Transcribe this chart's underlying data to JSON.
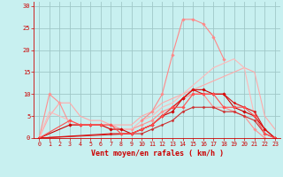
{
  "background_color": "#c8f0f0",
  "grid_color": "#a0c8c8",
  "xlabel": "Vent moyen/en rafales ( km/h )",
  "xlim": [
    -0.5,
    23.5
  ],
  "ylim": [
    0,
    31
  ],
  "yticks": [
    0,
    5,
    10,
    15,
    20,
    25,
    30
  ],
  "xticks": [
    0,
    1,
    2,
    3,
    4,
    5,
    6,
    7,
    8,
    9,
    10,
    11,
    12,
    13,
    14,
    15,
    16,
    17,
    18,
    19,
    20,
    21,
    22,
    23
  ],
  "lines": [
    {
      "x": [
        0,
        1,
        2,
        3,
        4,
        5,
        6,
        7,
        8,
        9,
        10,
        11,
        12,
        13,
        14,
        15,
        16,
        17,
        18,
        19,
        20,
        21,
        22
      ],
      "y": [
        0,
        10,
        8,
        3,
        3,
        3,
        3,
        3,
        2,
        2,
        3,
        4,
        6,
        7,
        9,
        10,
        10,
        7,
        7,
        6,
        5,
        2,
        0
      ],
      "color": "#ff9090",
      "lw": 0.8,
      "marker": "D",
      "ms": 1.8
    },
    {
      "x": [
        0,
        1,
        2,
        3,
        4,
        5,
        6,
        7,
        8,
        9,
        10,
        11,
        12,
        13,
        14,
        15,
        16,
        17,
        18,
        19,
        20,
        21,
        22,
        23
      ],
      "y": [
        0,
        5,
        8,
        8,
        5,
        4,
        4,
        3,
        3,
        3,
        5,
        6,
        8,
        9,
        10,
        11,
        12,
        13,
        14,
        15,
        16,
        15,
        5,
        2
      ],
      "color": "#ffaaaa",
      "lw": 0.8,
      "marker": null,
      "ms": 0
    },
    {
      "x": [
        0,
        1,
        2,
        3,
        4,
        5,
        6,
        7,
        8,
        9,
        10,
        11,
        12,
        13,
        14,
        15,
        16,
        17,
        18,
        19,
        20,
        21,
        22
      ],
      "y": [
        0,
        6,
        5,
        4,
        3,
        3,
        3,
        2,
        2,
        2,
        4,
        5,
        7,
        8,
        10,
        12,
        14,
        16,
        17,
        18,
        16,
        5,
        2
      ],
      "color": "#ffb8b8",
      "lw": 0.8,
      "marker": null,
      "ms": 0
    },
    {
      "x": [
        0,
        3,
        4,
        5,
        6,
        7,
        8,
        9,
        10,
        11,
        12,
        13,
        14,
        15,
        16,
        17,
        18,
        19,
        20,
        21,
        22,
        23
      ],
      "y": [
        0,
        3,
        3,
        3,
        3,
        2,
        2,
        1,
        2,
        3,
        5,
        6,
        9,
        11,
        11,
        10,
        10,
        7,
        6,
        5,
        2,
        0
      ],
      "color": "#cc0000",
      "lw": 0.8,
      "marker": "D",
      "ms": 1.8
    },
    {
      "x": [
        0,
        9,
        10,
        11,
        12,
        13,
        14,
        15,
        16,
        17,
        18,
        19,
        20,
        21,
        22,
        23
      ],
      "y": [
        0,
        1,
        1,
        2,
        3,
        4,
        6,
        7,
        7,
        7,
        6,
        6,
        5,
        4,
        1,
        0
      ],
      "color": "#cc3030",
      "lw": 0.8,
      "marker": "D",
      "ms": 1.5
    },
    {
      "x": [
        0,
        7,
        8,
        9,
        10,
        11,
        12,
        13,
        14,
        15,
        16,
        17,
        18,
        19,
        20,
        21,
        22,
        23
      ],
      "y": [
        0,
        1,
        1,
        1,
        2,
        3,
        5,
        7,
        9,
        11,
        10,
        10,
        10,
        8,
        7,
        6,
        2,
        0
      ],
      "color": "#dd1010",
      "lw": 0.8,
      "marker": "D",
      "ms": 1.5
    },
    {
      "x": [
        0,
        3,
        4,
        5,
        6,
        7,
        8,
        9,
        10,
        11,
        12,
        13,
        14,
        15,
        16,
        17,
        18,
        19,
        20,
        21,
        22,
        23
      ],
      "y": [
        0,
        4,
        3,
        3,
        3,
        3,
        1,
        1,
        2,
        3,
        5,
        7,
        7,
        10,
        10,
        10,
        7,
        7,
        7,
        5,
        1,
        0
      ],
      "color": "#ff5050",
      "lw": 0.8,
      "marker": "D",
      "ms": 1.8
    },
    {
      "x": [
        10,
        11,
        12,
        13,
        14,
        15,
        16,
        17,
        18
      ],
      "y": [
        4,
        6,
        10,
        19,
        27,
        27,
        26,
        23,
        18
      ],
      "color": "#ff8888",
      "lw": 0.8,
      "marker": "D",
      "ms": 1.8
    }
  ]
}
